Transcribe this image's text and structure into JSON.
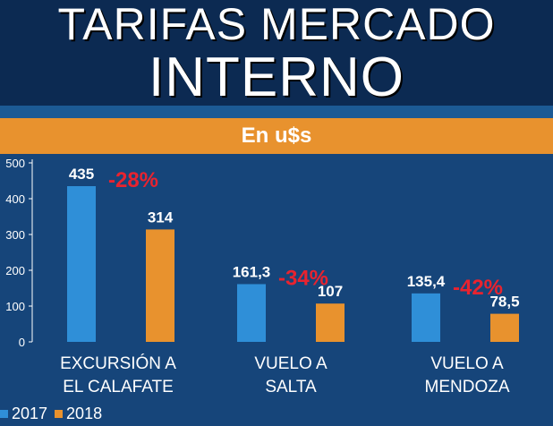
{
  "header": {
    "title_line1": "TARIFAS MERCADO",
    "title_line2": "INTERNO",
    "subtitle": "En u$s"
  },
  "colors": {
    "series_2017": "#2f8fd8",
    "series_2018": "#e8922e",
    "change_label": "#e8232f",
    "background": "#16457a"
  },
  "chart_data": {
    "type": "bar",
    "title": "TARIFAS MERCADO INTERNO",
    "subtitle": "En u$s",
    "categories": [
      [
        "EXCURSIÓN A",
        "EL CALAFATE"
      ],
      [
        "VUELO A",
        "SALTA"
      ],
      [
        "VUELO A",
        "MENDOZA"
      ]
    ],
    "series": [
      {
        "name": "2017",
        "values": [
          435,
          161.3,
          135.4
        ],
        "labels": [
          "435",
          "161,3",
          "135,4"
        ]
      },
      {
        "name": "2018",
        "values": [
          314,
          107,
          78.5
        ],
        "labels": [
          "314",
          "107",
          "78,5"
        ]
      }
    ],
    "changes": [
      "-28%",
      "-34%",
      "-42%"
    ],
    "ylim": [
      0,
      500
    ],
    "yticks": [
      0,
      100,
      200,
      300,
      400,
      500
    ],
    "ytick_labels": [
      "0",
      "100",
      "200",
      "300",
      "400",
      "500"
    ],
    "grid": false,
    "legend": "bottom-left"
  }
}
